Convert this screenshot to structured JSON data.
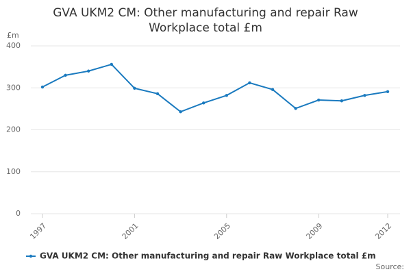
{
  "chart_data": {
    "type": "line",
    "title": "GVA UKM2 CM: Other manufacturing and repair Raw Workplace total £m",
    "y_label": "£m",
    "source": "Source:",
    "x": [
      1997,
      1998,
      1999,
      2000,
      2001,
      2002,
      2003,
      2004,
      2005,
      2006,
      2007,
      2008,
      2009,
      2010,
      2011,
      2012
    ],
    "series": [
      {
        "name": "GVA UKM2 CM: Other manufacturing and repair Raw Workplace total £m",
        "color": "#1a7abf",
        "values": [
          302,
          330,
          340,
          356,
          299,
          286,
          243,
          264,
          282,
          312,
          296,
          251,
          271,
          269,
          282,
          291
        ]
      }
    ],
    "xlim": [
      1997,
      2012
    ],
    "xticks": [
      1997,
      2001,
      2005,
      2009,
      2012
    ],
    "ylim": [
      0,
      400
    ],
    "yticks": [
      0,
      100,
      200,
      300,
      400
    ],
    "grid": true,
    "legend": "bottom"
  }
}
